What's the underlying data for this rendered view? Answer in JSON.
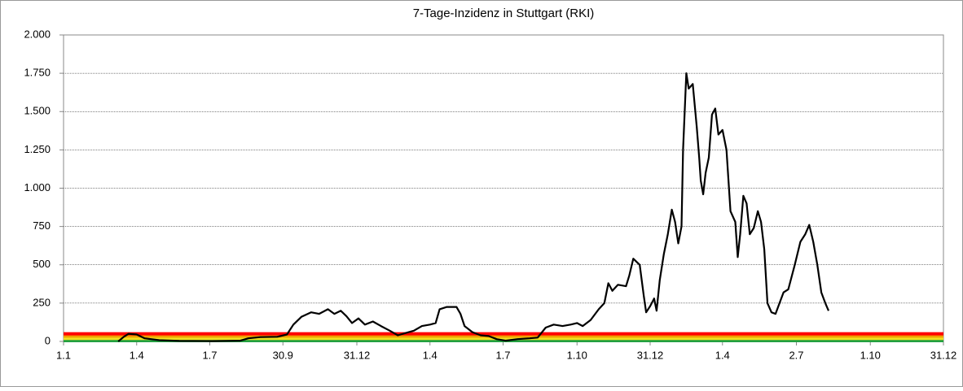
{
  "chart_data": {
    "type": "line",
    "title": "7-Tage-Inzidenz in Stuttgart (RKI)",
    "xlim": [
      0,
      1095
    ],
    "xticks": [
      {
        "value": 0,
        "label": "1.1"
      },
      {
        "value": 91,
        "label": "1.4"
      },
      {
        "value": 182,
        "label": "1.7"
      },
      {
        "value": 273,
        "label": "30.9"
      },
      {
        "value": 365,
        "label": "31.12"
      },
      {
        "value": 456,
        "label": "1.4"
      },
      {
        "value": 547,
        "label": "1.7"
      },
      {
        "value": 639,
        "label": "1.10"
      },
      {
        "value": 730,
        "label": "31.12"
      },
      {
        "value": 820,
        "label": "1.4"
      },
      {
        "value": 912,
        "label": "2.7"
      },
      {
        "value": 1004,
        "label": "1.10"
      },
      {
        "value": 1095,
        "label": "31.12"
      }
    ],
    "ylim": [
      0,
      2000
    ],
    "yticks": [
      0,
      250,
      500,
      750,
      {
        "value": 1000,
        "label": "1.000"
      },
      {
        "value": 1250,
        "label": "1.250"
      },
      {
        "value": 1500,
        "label": "1.500"
      },
      {
        "value": 1750,
        "label": "1.750"
      },
      {
        "value": 2000,
        "label": "2.000"
      }
    ],
    "grid": true,
    "thresholds": [
      {
        "value": 5,
        "color": "#22a040"
      },
      {
        "value": 20,
        "color": "#f0e020"
      },
      {
        "value": 35,
        "color": "#f0a000"
      },
      {
        "value": 50,
        "color": "#ff0000"
      }
    ],
    "x": [
      68,
      75,
      81,
      91,
      101,
      119,
      144,
      185,
      220,
      230,
      245,
      266,
      278,
      286,
      296,
      308,
      318,
      329,
      337,
      345,
      352,
      359,
      367,
      375,
      385,
      395,
      406,
      416,
      426,
      436,
      446,
      456,
      463,
      468,
      477,
      489,
      494,
      499,
      509,
      519,
      529,
      539,
      550,
      565,
      580,
      590,
      600,
      610,
      621,
      631,
      639,
      646,
      656,
      666,
      673,
      678,
      683,
      690,
      700,
      704,
      709,
      717,
      722,
      725,
      730,
      735,
      738,
      742,
      747,
      752,
      757,
      761,
      765,
      769,
      771,
      775,
      778,
      783,
      788,
      791,
      793,
      796,
      799,
      803,
      807,
      811,
      815,
      820,
      825,
      830,
      836,
      839,
      842,
      846,
      850,
      854,
      859,
      864,
      868,
      872,
      876,
      881,
      886,
      891,
      896,
      902,
      910,
      917,
      923,
      928,
      933,
      938,
      943,
      948,
      952
    ],
    "series": [
      {
        "color": "#000000",
        "values": [
          0,
          30,
          50,
          45,
          20,
          8,
          3,
          2,
          5,
          20,
          28,
          30,
          45,
          110,
          160,
          190,
          180,
          210,
          180,
          200,
          165,
          120,
          150,
          110,
          130,
          100,
          70,
          40,
          55,
          70,
          100,
          110,
          120,
          210,
          225,
          225,
          180,
          100,
          60,
          40,
          35,
          15,
          5,
          15,
          20,
          25,
          90,
          110,
          100,
          110,
          120,
          100,
          140,
          210,
          250,
          380,
          330,
          370,
          360,
          430,
          540,
          500,
          300,
          190,
          230,
          280,
          200,
          400,
          570,
          700,
          860,
          780,
          640,
          750,
          1250,
          1750,
          1650,
          1680,
          1400,
          1200,
          1050,
          960,
          1100,
          1200,
          1480,
          1520,
          1350,
          1380,
          1250,
          850,
          780,
          550,
          700,
          950,
          900,
          700,
          740,
          850,
          780,
          600,
          250,
          190,
          180,
          250,
          320,
          340,
          500,
          650,
          700,
          760,
          650,
          500,
          320,
          250,
          200
        ]
      }
    ]
  }
}
